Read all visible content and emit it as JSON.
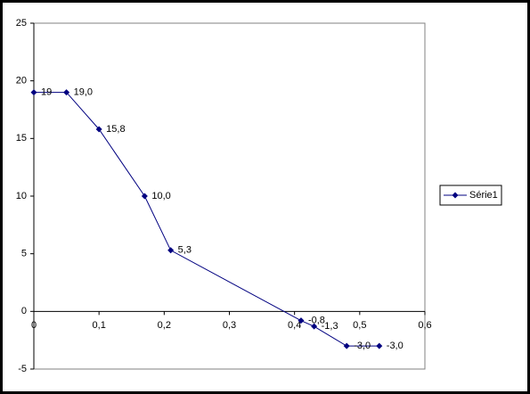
{
  "chart_data": {
    "type": "scatter-line",
    "x": [
      0,
      0.05,
      0.1,
      0.17,
      0.21,
      0.41,
      0.43,
      0.48,
      0.53
    ],
    "series": [
      {
        "name": "Série1",
        "color": "#000080",
        "values": [
          19,
          19,
          15.8,
          10,
          5.3,
          -0.8,
          -1.3,
          -3,
          -3
        ],
        "value_labels": [
          "19",
          "19,0",
          "15,8",
          "10,0",
          "5,3",
          "-0,8",
          "-1,3",
          "-3,0",
          "-3,0"
        ]
      }
    ],
    "xlim": [
      0,
      0.6
    ],
    "xticks": [
      0,
      {
        "value": 0.1,
        "label": "0,1"
      },
      {
        "value": 0.2,
        "label": "0,2"
      },
      {
        "value": 0.3,
        "label": "0,3"
      },
      {
        "value": 0.4,
        "label": "0,4"
      },
      {
        "value": 0.5,
        "label": "0,5"
      },
      {
        "value": 0.6,
        "label": "0,6"
      }
    ],
    "ylim": [
      -5,
      25
    ],
    "yticks": [
      -5,
      0,
      5,
      10,
      15,
      20,
      25
    ],
    "grid": false,
    "legend": "right"
  }
}
